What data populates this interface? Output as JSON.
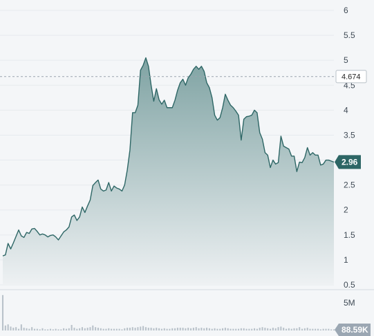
{
  "chart_data": {
    "type": "area",
    "y_ticks": [
      "6",
      "5.5",
      "5",
      "4.5",
      "4",
      "3.5",
      "3",
      "2.5",
      "2",
      "1.5",
      "1",
      "0.5"
    ],
    "ylim": [
      0.5,
      6
    ],
    "reference_value": "4.674",
    "last_value": "2.96",
    "volume_tick": "5M",
    "volume_last": "88.59K",
    "colors": {
      "line": "#2d6665",
      "fill_top": "#7fa3a3",
      "fill_bottom": "#eef1f3",
      "volume_bar": "#b9c2ca",
      "grid": "#e6eaee"
    },
    "series": [
      {
        "values": [
          1.08,
          1.1,
          1.33,
          1.22,
          1.34,
          1.47,
          1.6,
          1.48,
          1.45,
          1.55,
          1.53,
          1.62,
          1.63,
          1.57,
          1.5,
          1.52,
          1.5,
          1.46,
          1.49,
          1.5,
          1.46,
          1.4,
          1.48,
          1.56,
          1.6,
          1.66,
          1.86,
          1.9,
          1.79,
          1.86,
          2.06,
          1.95,
          2.08,
          2.2,
          2.49,
          2.55,
          2.6,
          2.42,
          2.38,
          2.4,
          2.55,
          2.38,
          2.48,
          2.44,
          2.42,
          2.38,
          2.5,
          2.8,
          3.2,
          3.95,
          3.95,
          4.1,
          4.8,
          4.9,
          5.05,
          4.88,
          4.5,
          4.18,
          4.43,
          4.21,
          4.12,
          4.2,
          4.05,
          4.05,
          4.05,
          4.2,
          4.4,
          4.55,
          4.62,
          4.5,
          4.65,
          4.72,
          4.82,
          4.88,
          4.82,
          4.88,
          4.78,
          4.55,
          4.45,
          4.25,
          3.9,
          3.8,
          3.85,
          4.05,
          4.32,
          4.2,
          4.1,
          4.05,
          3.98,
          3.9,
          3.4,
          3.82,
          3.87,
          3.88,
          3.9,
          4.0,
          3.95,
          3.55,
          3.42,
          3.15,
          3.1,
          2.85,
          3.0,
          2.92,
          2.95,
          3.48,
          3.28,
          3.25,
          3.22,
          3.08,
          3.08,
          2.77,
          2.96,
          2.95,
          3.05,
          3.25,
          3.1,
          3.15,
          3.1,
          3.1,
          2.9,
          2.92,
          3.0,
          3.0,
          2.98,
          2.96
        ]
      }
    ],
    "volume": [
      6.4,
      0.9,
      1.1,
      0.7,
      0.5,
      0.6,
      0.3,
      1.1,
      0.5,
      0.4,
      0.3,
      0.6,
      0.3,
      0.3,
      0.2,
      0.4,
      0.2,
      0.2,
      0.3,
      0.2,
      0.3,
      0.2,
      0.2,
      0.4,
      0.3,
      0.4,
      1.0,
      0.5,
      0.3,
      0.4,
      0.6,
      0.4,
      0.5,
      0.6,
      0.9,
      0.6,
      0.5,
      0.4,
      0.3,
      0.3,
      0.4,
      0.3,
      0.3,
      0.3,
      0.3,
      0.2,
      0.4,
      0.5,
      0.5,
      0.6,
      0.5,
      0.6,
      0.7,
      0.8,
      0.6,
      0.5,
      0.5,
      0.4,
      0.5,
      0.4,
      0.3,
      0.4,
      0.3,
      0.3,
      0.4,
      0.4,
      0.5,
      0.5,
      0.5,
      0.4,
      0.5,
      0.4,
      0.5,
      0.6,
      0.4,
      0.5,
      0.4,
      0.5,
      0.4,
      0.3,
      0.4,
      0.3,
      0.3,
      0.4,
      0.5,
      0.4,
      0.3,
      0.3,
      0.3,
      0.3,
      0.4,
      0.4,
      0.3,
      0.3,
      0.3,
      0.4,
      0.3,
      0.5,
      0.6,
      0.5,
      0.4,
      0.3,
      0.5,
      0.4,
      0.6,
      0.7,
      0.5,
      0.3,
      0.4,
      0.3,
      0.4,
      0.4,
      0.6,
      0.3,
      0.4,
      0.5,
      0.3,
      0.3,
      0.3,
      0.3,
      0.2,
      0.3,
      0.3,
      0.3,
      0.2,
      0.2
    ],
    "volume_ylim": [
      0,
      7
    ]
  }
}
